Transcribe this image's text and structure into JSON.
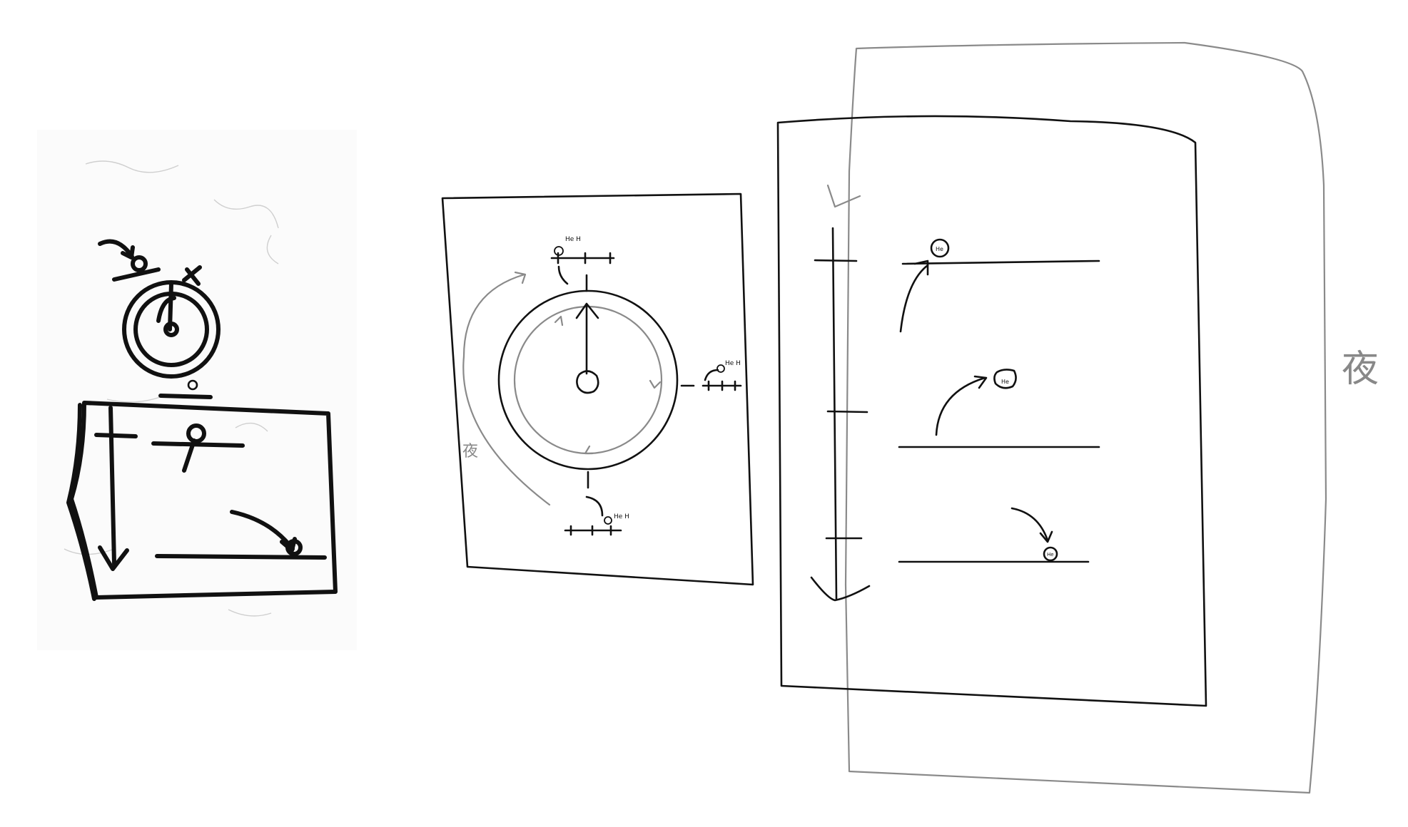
{
  "panels": {
    "photo_sketch": {},
    "clock_sketch": {
      "night_label": "夜",
      "markers": [
        {
          "label": "He H"
        },
        {
          "label": "He H"
        },
        {
          "label": "He H"
        }
      ]
    },
    "timeline_sketch": {
      "night_label": "夜",
      "markers": [
        {
          "label": "He"
        },
        {
          "label": "He"
        },
        {
          "label": "He"
        }
      ]
    }
  },
  "colors": {
    "ink": "#111111",
    "pencil_gray": "#8a8a8a",
    "paper_photo": "#fbfbfb"
  }
}
